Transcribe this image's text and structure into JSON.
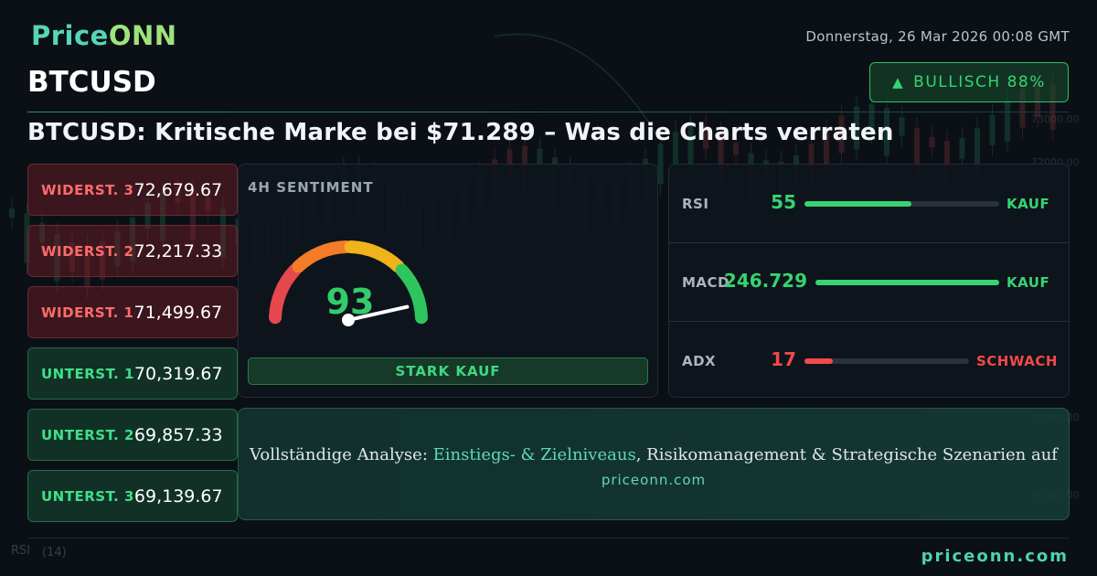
{
  "brand": {
    "logo_main": "Price",
    "logo_accent": "ONN",
    "footer_site": "priceonn.com"
  },
  "header": {
    "datetime": "Donnerstag, 26 Mar 2026 00:08 GMT",
    "symbol": "BTCUSD",
    "bias_label": "BULLISCH 88%",
    "bias_icon": "triangle-up-icon",
    "headline": "BTCUSD: Kritische Marke bei $71.289 – Was die Charts verraten"
  },
  "levels": [
    {
      "label": "WIDERST. 3",
      "value": "72,679.67",
      "kind": "resistance"
    },
    {
      "label": "WIDERST. 2",
      "value": "72,217.33",
      "kind": "resistance"
    },
    {
      "label": "WIDERST. 1",
      "value": "71,499.67",
      "kind": "resistance"
    },
    {
      "label": "UNTERST. 1",
      "value": "70,319.67",
      "kind": "support"
    },
    {
      "label": "UNTERST. 2",
      "value": "69,857.33",
      "kind": "support"
    },
    {
      "label": "UNTERST. 3",
      "value": "69,139.67",
      "kind": "support"
    }
  ],
  "sentiment": {
    "title": "4H SENTIMENT",
    "score": 93,
    "score_max": 100,
    "signal": "STARK KAUF",
    "gauge_colors": [
      "#e5484d",
      "#f47b28",
      "#f0b31b",
      "#2fc55e"
    ]
  },
  "indicators": [
    {
      "name": "RSI",
      "value": "55",
      "level": 0.55,
      "signal": "KAUF",
      "color": "#35d470"
    },
    {
      "name": "MACD",
      "value": "246.729",
      "level": 1.0,
      "signal": "KAUF",
      "color": "#35d470"
    },
    {
      "name": "ADX",
      "value": "17",
      "level": 0.17,
      "signal": "SCHWACH",
      "color": "#f04a4a"
    }
  ],
  "cta": {
    "prefix": "Vollständige Analyse: ",
    "highlight": "Einstiegs- & Zielniveaus",
    "suffix": ", Risikomanagement & Strategische Szenarien auf",
    "site": "priceonn.com"
  },
  "background": {
    "price_axis": [
      "73000.00",
      "72000.00",
      "71000.00",
      "70000.00",
      "69000.00"
    ],
    "pane_label": "RSI",
    "pane_param": "(14)"
  }
}
